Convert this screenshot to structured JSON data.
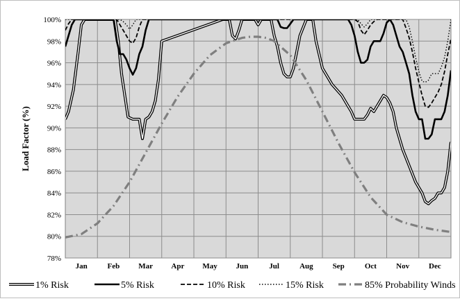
{
  "chart_data": {
    "type": "line",
    "title": "",
    "xlabel": "",
    "ylabel": "Load Factor (%)",
    "ylim": [
      78,
      100
    ],
    "yticks": [
      "78%",
      "80%",
      "82%",
      "84%",
      "86%",
      "88%",
      "90%",
      "92%",
      "94%",
      "96%",
      "98%",
      "100%"
    ],
    "categories": [
      "Jan",
      "Feb",
      "Mar",
      "Apr",
      "May",
      "Jun",
      "Jul",
      "Aug",
      "Sep",
      "Oct",
      "Nov",
      "Dec"
    ],
    "grid": true,
    "legend_position": "bottom",
    "plot_background": "#d9d9d9",
    "x_domain": [
      0,
      12
    ],
    "series": [
      {
        "name": "1% Risk",
        "style": "double",
        "x": [
          0,
          0.1,
          0.25,
          0.4,
          0.5,
          0.6,
          0.7,
          1.55,
          1.65,
          1.75,
          1.85,
          1.95,
          2.1,
          2.15,
          2.2,
          2.25,
          2.3,
          2.4,
          2.5,
          2.6,
          2.7,
          2.8,
          2.9,
          3.0,
          4.9,
          5.1,
          5.2,
          5.3,
          5.4,
          5.5,
          5.6,
          5.8,
          5.9,
          6.0,
          6.1,
          6.2,
          6.3,
          6.4,
          6.5,
          6.6,
          6.7,
          6.8,
          6.9,
          7.0,
          7.1,
          7.2,
          7.3,
          7.5,
          7.7,
          7.8,
          8.0,
          8.3,
          8.6,
          8.9,
          9.0,
          9.2,
          9.3,
          9.4,
          9.5,
          9.6,
          9.7,
          9.8,
          9.9,
          10.0,
          10.1,
          10.2,
          10.3,
          10.5,
          10.7,
          10.9,
          11.1,
          11.2,
          11.3,
          11.4,
          11.5,
          11.6,
          11.7,
          11.8,
          11.9,
          12.0
        ],
        "y": [
          90.8,
          91.5,
          93.5,
          97,
          99.5,
          100,
          100,
          100,
          98,
          95,
          93,
          91,
          90.8,
          90.8,
          90.8,
          90.8,
          90.8,
          89,
          90.8,
          91,
          91.5,
          92.5,
          94.5,
          98,
          100,
          100,
          98.5,
          98.2,
          99,
          100,
          100,
          100,
          100,
          99.5,
          100,
          100,
          100,
          100,
          98.5,
          97.5,
          96,
          95,
          94.7,
          94.7,
          95.5,
          97,
          98.5,
          100,
          100,
          98,
          95.5,
          94,
          93,
          91.5,
          90.8,
          90.8,
          90.8,
          91.2,
          91.8,
          91.5,
          92,
          92.5,
          93,
          92.8,
          92.3,
          91.5,
          90,
          88,
          86.5,
          85,
          84,
          83.2,
          83,
          83.3,
          83.5,
          84,
          84,
          84.5,
          86,
          88.7
        ]
      },
      {
        "name": "5% Risk",
        "style": "solid",
        "x": [
          0,
          0.1,
          0.2,
          0.3,
          0.4,
          1.5,
          1.6,
          1.7,
          1.8,
          1.9,
          2.0,
          2.1,
          2.2,
          2.3,
          2.4,
          2.5,
          2.6,
          2.7,
          2.8,
          2.9,
          6.1,
          6.2,
          6.3,
          6.4,
          6.5,
          6.6,
          6.7,
          6.8,
          6.9,
          7.0,
          7.1,
          7.2,
          7.3,
          8.8,
          8.9,
          9.0,
          9.1,
          9.2,
          9.3,
          9.4,
          9.5,
          9.6,
          9.7,
          9.8,
          9.9,
          10.0,
          10.1,
          10.2,
          10.3,
          10.4,
          10.5,
          10.6,
          10.7,
          10.8,
          10.9,
          11.0,
          11.1,
          11.2,
          11.3,
          11.4,
          11.5,
          11.6,
          11.7,
          11.8,
          11.9,
          12.0
        ],
        "y": [
          97.5,
          98.5,
          99.5,
          100,
          100,
          100,
          98,
          96.8,
          96.8,
          96.3,
          95.5,
          94.9,
          95.5,
          96.8,
          97.5,
          99,
          100,
          100,
          100,
          100,
          100,
          100,
          100,
          100,
          100,
          100,
          99.3,
          99.2,
          99.2,
          99.6,
          100,
          100,
          100,
          100,
          99.5,
          98.5,
          97,
          96,
          96,
          96.3,
          97.5,
          98,
          98,
          98,
          98.7,
          99.7,
          100,
          99.5,
          98.5,
          97.5,
          97,
          96,
          95,
          93,
          91.5,
          90.8,
          90.8,
          89,
          89,
          89.4,
          90.8,
          90.8,
          90.8,
          91.5,
          93,
          95.3
        ]
      },
      {
        "name": "10% Risk",
        "style": "dashed",
        "x": [
          0,
          0.1,
          0.2,
          1.5,
          1.6,
          1.7,
          1.8,
          1.9,
          2.0,
          2.1,
          2.2,
          2.3,
          2.4,
          2.5,
          9.0,
          9.1,
          9.2,
          9.3,
          9.4,
          9.5,
          9.6,
          9.7,
          9.8,
          9.9,
          10.0,
          10.3,
          10.5,
          10.6,
          10.7,
          10.8,
          10.9,
          11.0,
          11.1,
          11.2,
          11.3,
          11.4,
          11.5,
          11.6,
          11.7,
          11.8,
          11.9,
          12.0
        ],
        "y": [
          99,
          99.6,
          100,
          100,
          100,
          99.5,
          99,
          98.5,
          98,
          97.8,
          98.3,
          99.3,
          100,
          100,
          100,
          99.8,
          99,
          98.6,
          99,
          99.5,
          99.8,
          100,
          100,
          100,
          100,
          100,
          100,
          99.2,
          98.3,
          97,
          95.5,
          94.2,
          93,
          92,
          91.9,
          92.3,
          92.8,
          93.3,
          94,
          95.2,
          96.8,
          98.2
        ]
      },
      {
        "name": "15% Risk",
        "style": "dotted",
        "x": [
          0,
          1.6,
          1.7,
          1.8,
          1.9,
          2.0,
          2.1,
          2.2,
          2.3,
          9.1,
          9.2,
          9.3,
          9.4,
          9.5,
          10.6,
          10.7,
          10.8,
          10.9,
          11.0,
          11.1,
          11.2,
          11.3,
          11.4,
          11.5,
          11.6,
          11.7,
          11.8,
          11.9,
          12.0
        ],
        "y": [
          100,
          100,
          100,
          99.8,
          99.5,
          99.1,
          99.5,
          100,
          100,
          100,
          99.6,
          99.3,
          99.6,
          100,
          100,
          99.3,
          98,
          96.5,
          95.2,
          94.3,
          94.2,
          94.4,
          95,
          95,
          95,
          95.6,
          96.5,
          98,
          100
        ]
      },
      {
        "name": "85% Probability Winds",
        "style": "dashdot",
        "x": [
          0,
          0.5,
          1.0,
          1.5,
          2.0,
          2.5,
          3.0,
          3.5,
          4.0,
          4.5,
          5.0,
          5.5,
          5.75,
          6.0,
          6.25,
          6.5,
          7.0,
          7.5,
          8.0,
          8.5,
          9.0,
          9.5,
          10.0,
          10.5,
          11.0,
          11.5,
          12.0
        ],
        "y": [
          79.9,
          80.2,
          81.2,
          82.8,
          85.0,
          87.7,
          90.4,
          92.9,
          95.0,
          96.7,
          97.8,
          98.3,
          98.4,
          98.4,
          98.3,
          98.0,
          96.7,
          94.4,
          91.5,
          88.6,
          85.9,
          83.6,
          82.0,
          81.3,
          80.9,
          80.6,
          80.4
        ]
      }
    ]
  }
}
